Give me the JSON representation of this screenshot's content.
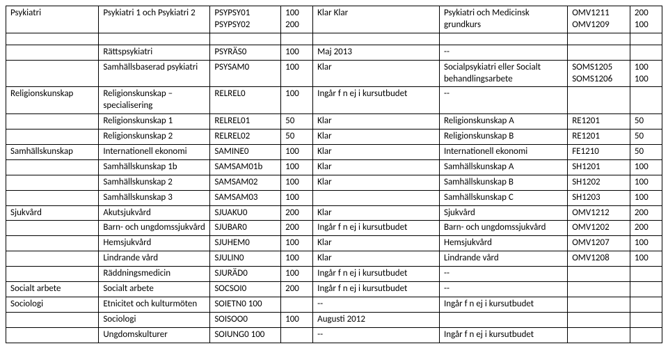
{
  "rows": [
    [
      "Psykiatri",
      "Psykiatri 1 och Psykiatri 2",
      "PSYPSY01 PSYPSY02",
      "100 200",
      "Klar\nKlar",
      "Psykiatri och Medicinsk grundkurs",
      "OMV1211 OMV1209",
      "200 100"
    ],
    "SPACER",
    [
      "",
      "Rättspsykiatri",
      "PSYRÄS0",
      "100",
      "Maj 2013",
      "--",
      "",
      ""
    ],
    [
      "",
      "Samhällsbaserad psykiatri",
      "PSYSAM0",
      "100",
      "Klar",
      "Socialpsykiatri eller Socialt behandlingsarbete",
      "SOMS1205 SOMS1206",
      "100 100"
    ],
    [
      "Religionskunskap",
      "Religionskunskap – specialisering",
      "RELREL0",
      "100",
      "Ingår f n ej i kursutbudet",
      "--",
      "",
      ""
    ],
    [
      "",
      "Religionskunskap 1",
      "RELREL01",
      "50",
      "Klar",
      "Religionskunskap A",
      "RE1201",
      "50"
    ],
    [
      "",
      "Religionskunskap 2",
      "RELREL02",
      "50",
      "Klar",
      "Religionskunskap B",
      "RE1201",
      "50"
    ],
    [
      "Samhällskunskap",
      "Internationell ekonomi",
      "SAMINE0",
      "100",
      "Klar",
      "Internationell ekonomi",
      "FE1210",
      "50"
    ],
    [
      "",
      "Samhällskunskap 1b",
      "SAMSAM01b",
      "100",
      "Klar",
      "Samhällskunskap A",
      "SH1201",
      "100"
    ],
    [
      "",
      "Samhällskunskap 2",
      "SAMSAM02",
      "100",
      "Klar",
      "Samhällskunskap B",
      "SH1202",
      "100"
    ],
    [
      "",
      "Samhällskunskap 3",
      "SAMSAM03",
      "100",
      "",
      "Samhällskunskap C",
      "SH1203",
      "100"
    ],
    [
      "Sjukvård",
      "Akutsjukvård",
      "SJUAKU0",
      "200",
      "Klar",
      "Sjukvård",
      "OMV1212",
      "200"
    ],
    [
      "",
      "Barn- och ungdomssjukvård",
      "SJUBAR0",
      "200",
      "Ingår f n ej i kursutbudet",
      "Barn- och ungdomssjukvård",
      "OMV1202",
      "200"
    ],
    [
      "",
      "Hemsjukvård",
      "SJUHEM0",
      "100",
      "Klar",
      "Hemsjukvård",
      "OMV1207",
      "100"
    ],
    [
      "",
      "Lindrande vård",
      "SJULIN0",
      "100",
      "Klar",
      "Lindrande vård",
      "OMV1208",
      "100"
    ],
    [
      "",
      "Räddningsmedicin",
      "SJURÄD0",
      "100",
      "Ingår f n ej i kursutbudet",
      "--",
      "",
      ""
    ],
    [
      "Socialt arbete",
      "Socialt arbete",
      "SOCSOI0",
      "200",
      "Ingår f n ej i kursutbudet",
      "--",
      "",
      ""
    ],
    [
      "Sociologi",
      "Etnicitet och kulturmöten",
      "SOIETN0 100",
      "",
      "--",
      "Ingår f n ej i kursutbudet",
      "",
      ""
    ],
    [
      "",
      "Sociologi",
      "SOISOO0",
      "100",
      "Augusti 2012",
      "",
      "",
      ""
    ],
    [
      "",
      "Ungdomskulturer",
      "SOIUNG0 100",
      "",
      "--",
      "Ingår f n ej i kursutbudet",
      "",
      ""
    ]
  ]
}
